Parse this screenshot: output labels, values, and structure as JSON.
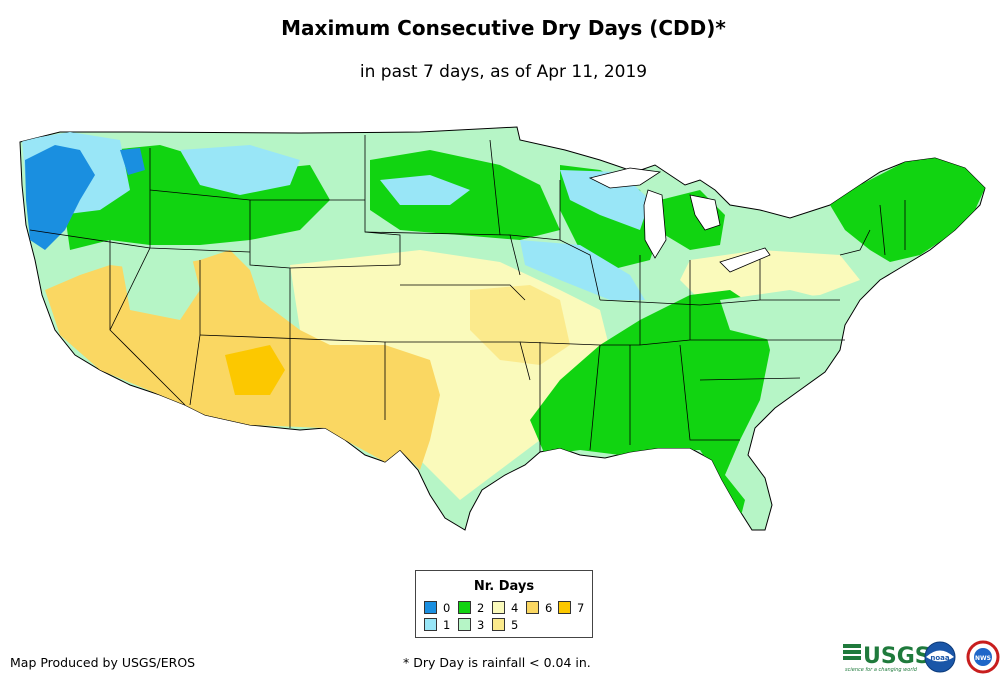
{
  "title": "Maximum Consecutive Dry Days (CDD)*",
  "subtitle": "in past 7 days, as of Apr 11, 2019",
  "legend": {
    "title": "Nr. Days",
    "items": [
      {
        "label": "0",
        "color": "#1a8fe0"
      },
      {
        "label": "1",
        "color": "#99e6f7"
      },
      {
        "label": "2",
        "color": "#11d411"
      },
      {
        "label": "3",
        "color": "#b6f5c6"
      },
      {
        "label": "4",
        "color": "#fafabb"
      },
      {
        "label": "5",
        "color": "#fbea8c"
      },
      {
        "label": "6",
        "color": "#fad762"
      },
      {
        "label": "7",
        "color": "#fcc800"
      }
    ]
  },
  "credit": "Map Produced by USGS/EROS",
  "footnote": "* Dry Day is rainfall < 0.04 in.",
  "logos": {
    "usgs": "USGS",
    "usgs_tagline": "science for a changing world",
    "noaa": "noaa",
    "nws": "NWS"
  }
}
